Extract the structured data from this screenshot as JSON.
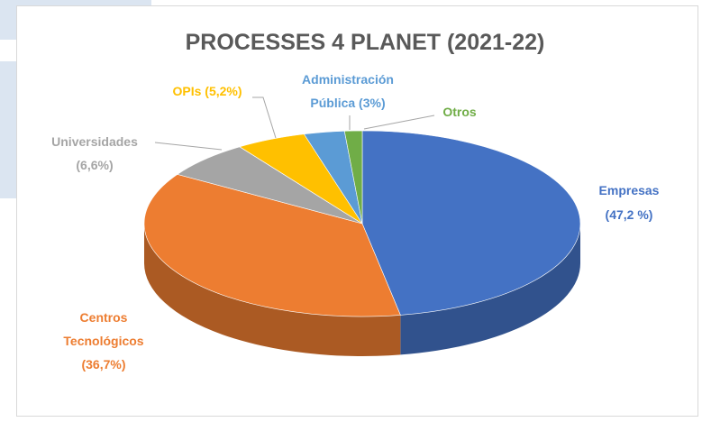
{
  "chart_data": {
    "type": "pie",
    "title": "PROCESSES 4 PLANET (2021-22)",
    "slices": [
      {
        "label_lines": [
          "Empresas",
          "(47,2 %)"
        ],
        "value": 47.2,
        "color": "#4472c4",
        "label_color": "#4472c4"
      },
      {
        "label_lines": [
          "Centros",
          "Tecnológicos",
          "(36,7%)"
        ],
        "value": 36.7,
        "color": "#ed7d31",
        "label_color": "#ed7d31"
      },
      {
        "label_lines": [
          "Universidades",
          "(6,6%)"
        ],
        "value": 6.6,
        "color": "#a5a5a5",
        "label_color": "#a5a5a5"
      },
      {
        "label_lines": [
          "OPIs (5,2%)"
        ],
        "value": 5.2,
        "color": "#ffc000",
        "label_color": "#ffc000"
      },
      {
        "label_lines": [
          "Administración",
          "Pública (3%)"
        ],
        "value": 3.0,
        "color": "#5b9bd5",
        "label_color": "#5b9bd5"
      },
      {
        "label_lines": [
          "Otros"
        ],
        "value": 1.3,
        "color": "#70ad47",
        "label_color": "#70ad47"
      }
    ],
    "style": "3d-pie",
    "legend": "none"
  }
}
